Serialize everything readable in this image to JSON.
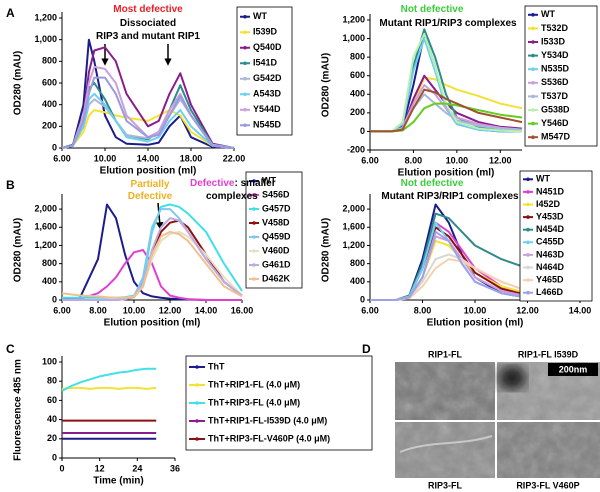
{
  "panels": [
    "A",
    "B",
    "C",
    "D"
  ],
  "micrographs": {
    "labels": [
      "RIP1-FL",
      "RIP1-FL I539D",
      "RIP3-FL",
      "RIP3-FL V460P"
    ],
    "scale_bar": "200nm"
  },
  "chart_data": [
    {
      "type": "line",
      "xlabel": "Elution position (ml)",
      "ylabel": "OD280 (mAU)",
      "annotations": [
        {
          "text": "Most defective",
          "color": "#e8202a"
        },
        {
          "text": "Dissociated",
          "color": "#000000"
        },
        {
          "text": "RIP3 and mutant RIP1",
          "color": "#000000"
        }
      ],
      "xlim": [
        6,
        22
      ],
      "xticks": [
        {
          "value": 6,
          "label": "6.00"
        },
        {
          "value": 10,
          "label": "10.00"
        },
        {
          "value": 14,
          "label": "14.00"
        },
        {
          "value": 18,
          "label": "18.00"
        },
        {
          "value": 22,
          "label": "22.00"
        }
      ],
      "ylim": [
        0,
        1200
      ],
      "yticks": [
        0,
        200,
        400,
        600,
        800,
        {
          "value": 1000,
          "label": "1,000"
        },
        {
          "value": 1200,
          "label": "1,200"
        }
      ],
      "x": [
        6,
        7,
        8,
        8.5,
        9,
        10,
        11,
        12,
        14,
        15,
        16,
        17,
        18,
        20,
        22
      ],
      "series": [
        {
          "name": "WT",
          "color": "#1c1c8c",
          "values": [
            0,
            20,
            400,
            1000,
            800,
            300,
            100,
            40,
            30,
            50,
            200,
            300,
            100,
            10,
            0
          ]
        },
        {
          "name": "I539D",
          "color": "#f2e232",
          "values": [
            0,
            20,
            150,
            300,
            350,
            330,
            300,
            280,
            250,
            300,
            350,
            300,
            150,
            20,
            0
          ]
        },
        {
          "name": "Q540D",
          "color": "#8b1c8b",
          "values": [
            0,
            30,
            300,
            700,
            900,
            930,
            800,
            500,
            200,
            250,
            500,
            690,
            400,
            40,
            0
          ]
        },
        {
          "name": "I541D",
          "color": "#2e8b8b",
          "values": [
            0,
            30,
            300,
            550,
            600,
            450,
            250,
            120,
            80,
            150,
            350,
            580,
            350,
            30,
            0
          ]
        },
        {
          "name": "G542D",
          "color": "#a9b8d8",
          "values": [
            0,
            20,
            200,
            400,
            450,
            380,
            250,
            120,
            90,
            130,
            300,
            450,
            300,
            30,
            0
          ]
        },
        {
          "name": "A543D",
          "color": "#6ecff0",
          "values": [
            0,
            20,
            200,
            450,
            500,
            400,
            250,
            100,
            60,
            100,
            250,
            350,
            200,
            20,
            0
          ]
        },
        {
          "name": "Y544D",
          "color": "#c9a0dc",
          "values": [
            0,
            20,
            300,
            600,
            750,
            730,
            600,
            300,
            100,
            150,
            350,
            500,
            300,
            20,
            0
          ]
        },
        {
          "name": "N545D",
          "color": "#9a9ae0",
          "values": [
            0,
            20,
            250,
            500,
            650,
            650,
            500,
            250,
            100,
            120,
            300,
            480,
            300,
            20,
            0
          ]
        }
      ]
    },
    {
      "type": "line",
      "xlabel": "Elution position (ml)",
      "ylabel": "OD280 (mAU)",
      "annotations": [
        {
          "text": "Not defective",
          "color": "#3ccc3c"
        },
        {
          "text": "Mutant RIP1/RIP3 complexes",
          "color": "#000000"
        }
      ],
      "xlim": [
        6,
        13
      ],
      "xticks": [
        {
          "value": 6,
          "label": "6.00"
        },
        {
          "value": 8,
          "label": "8.00"
        },
        {
          "value": 10,
          "label": "10.00"
        },
        {
          "value": 12,
          "label": "12.00"
        }
      ],
      "ylim": [
        -200,
        1200
      ],
      "yticks": [
        -200,
        0,
        200,
        400,
        600,
        800,
        {
          "value": 1000,
          "label": "1,000"
        },
        {
          "value": 1200,
          "label": "1,200"
        }
      ],
      "x": [
        6,
        7,
        7.5,
        8,
        8.5,
        9,
        9.5,
        10,
        11,
        12,
        13
      ],
      "series": [
        {
          "name": "WT",
          "color": "#1c1c8c",
          "values": [
            0,
            0,
            50,
            500,
            1050,
            700,
            250,
            80,
            20,
            0,
            0
          ]
        },
        {
          "name": "T532D",
          "color": "#f2e232",
          "values": [
            0,
            0,
            20,
            300,
            580,
            560,
            500,
            450,
            380,
            300,
            250
          ]
        },
        {
          "name": "I533D",
          "color": "#8b1c8b",
          "values": [
            0,
            0,
            30,
            350,
            600,
            450,
            300,
            200,
            100,
            50,
            30
          ]
        },
        {
          "name": "Y534D",
          "color": "#2e8b8b",
          "values": [
            0,
            0,
            80,
            700,
            1100,
            800,
            400,
            150,
            50,
            20,
            10
          ]
        },
        {
          "name": "N535D",
          "color": "#6ecff0",
          "values": [
            0,
            0,
            80,
            650,
            1000,
            650,
            250,
            80,
            20,
            0,
            0
          ]
        },
        {
          "name": "S536D",
          "color": "#c9a0dc",
          "values": [
            0,
            0,
            40,
            300,
            500,
            400,
            250,
            150,
            80,
            40,
            20
          ]
        },
        {
          "name": "T537D",
          "color": "#a9b8d8",
          "values": [
            0,
            0,
            30,
            250,
            400,
            300,
            200,
            120,
            60,
            30,
            20
          ]
        },
        {
          "name": "G538D",
          "color": "#b8f0b0",
          "values": [
            0,
            0,
            100,
            800,
            1050,
            700,
            300,
            100,
            30,
            10,
            0
          ]
        },
        {
          "name": "Y546D",
          "color": "#66cc22",
          "values": [
            0,
            0,
            10,
            100,
            250,
            300,
            300,
            280,
            230,
            180,
            150
          ]
        },
        {
          "name": "M547D",
          "color": "#a0522d",
          "values": [
            0,
            0,
            20,
            250,
            450,
            420,
            350,
            300,
            200,
            150,
            100
          ]
        }
      ]
    },
    {
      "type": "line",
      "xlabel": "Elution position (ml)",
      "ylabel": "OD280 (mAU)",
      "annotations": [
        {
          "text": "Partially",
          "color": "#f0b020"
        },
        {
          "text": "Defective",
          "color": "#f0b020"
        },
        {
          "text": "Defective",
          "color": "#e040d0"
        },
        {
          "text": ": smaller",
          "color": "#000000"
        },
        {
          "text": "complexes",
          "color": "#000000"
        }
      ],
      "xlim": [
        6,
        16
      ],
      "xticks": [
        {
          "value": 6,
          "label": "6.00"
        },
        {
          "value": 8,
          "label": "8.00"
        },
        {
          "value": 10,
          "label": "10.00"
        },
        {
          "value": 12,
          "label": "12.00"
        },
        {
          "value": 14,
          "label": "14.00"
        },
        {
          "value": 16,
          "label": "16.00"
        }
      ],
      "ylim": [
        0,
        2200
      ],
      "yticks": [
        0,
        400,
        800,
        {
          "value": 1200,
          "label": "1,200"
        },
        {
          "value": 1600,
          "label": "1,600"
        },
        {
          "value": 2000,
          "label": "2,000"
        }
      ],
      "x": [
        6,
        7,
        8,
        8.5,
        9,
        9.5,
        10,
        10.5,
        11,
        11.5,
        12,
        12.5,
        13,
        14,
        15,
        16
      ],
      "series": [
        {
          "name": "WT",
          "color": "#1c1c8c",
          "values": [
            0,
            50,
            900,
            2100,
            1800,
            1000,
            400,
            150,
            80,
            50,
            30,
            20,
            10,
            0,
            0,
            0
          ]
        },
        {
          "name": "S456D",
          "color": "#e040d0",
          "values": [
            0,
            20,
            150,
            300,
            500,
            800,
            1050,
            1100,
            800,
            300,
            100,
            50,
            20,
            0,
            0,
            0
          ]
        },
        {
          "name": "G457D",
          "color": "#40e0e8",
          "values": [
            50,
            50,
            50,
            50,
            50,
            60,
            100,
            400,
            1500,
            2050,
            2100,
            2050,
            1900,
            1500,
            800,
            200
          ]
        },
        {
          "name": "V458D",
          "color": "#8b1010",
          "values": [
            0,
            0,
            0,
            0,
            0,
            20,
            60,
            300,
            1000,
            1500,
            1700,
            1750,
            1600,
            1000,
            400,
            100
          ]
        },
        {
          "name": "Q459D",
          "color": "#80c8f0",
          "values": [
            0,
            0,
            0,
            0,
            0,
            30,
            80,
            500,
            1600,
            2000,
            2000,
            1800,
            1500,
            900,
            400,
            100
          ]
        },
        {
          "name": "V460D",
          "color": "#e8e0c0",
          "values": [
            0,
            0,
            0,
            0,
            0,
            20,
            60,
            300,
            900,
            1300,
            1450,
            1500,
            1400,
            1000,
            500,
            100
          ]
        },
        {
          "name": "G461D",
          "color": "#c0a8e0",
          "values": [
            0,
            0,
            0,
            0,
            0,
            20,
            70,
            350,
            1100,
            1600,
            1800,
            1750,
            1500,
            900,
            400,
            100
          ]
        },
        {
          "name": "D462K",
          "color": "#f0c090",
          "values": [
            150,
            100,
            80,
            60,
            50,
            50,
            80,
            300,
            1000,
            1400,
            1500,
            1450,
            1300,
            800,
            300,
            80
          ]
        }
      ]
    },
    {
      "type": "line",
      "xlabel": "Elution position (ml)",
      "ylabel": "OD280 (mAU)",
      "annotations": [
        {
          "text": "Not defective",
          "color": "#3ccc3c"
        },
        {
          "text": "Mutant RIP3/RIP1 complexes",
          "color": "#000000"
        }
      ],
      "xlim": [
        6,
        14
      ],
      "xticks": [
        {
          "value": 6,
          "label": "6.00"
        },
        {
          "value": 8,
          "label": "8.00"
        },
        {
          "value": 10,
          "label": "10.00"
        },
        {
          "value": 12,
          "label": "12.00"
        },
        {
          "value": 14,
          "label": "14.00"
        }
      ],
      "ylim": [
        0,
        2200
      ],
      "yticks": [
        0,
        400,
        800,
        {
          "value": 1200,
          "label": "1,200"
        },
        {
          "value": 1600,
          "label": "1,600"
        },
        {
          "value": 2000,
          "label": "2,000"
        }
      ],
      "x": [
        6,
        7,
        7.5,
        8,
        8.5,
        9,
        9.5,
        10,
        11,
        12,
        13,
        14
      ],
      "series": [
        {
          "name": "WT",
          "color": "#1c1c8c",
          "values": [
            0,
            0,
            100,
            900,
            2100,
            1700,
            1000,
            500,
            150,
            50,
            20,
            0
          ]
        },
        {
          "name": "N451D",
          "color": "#e040d0",
          "values": [
            0,
            0,
            80,
            700,
            1700,
            1500,
            1100,
            700,
            300,
            100,
            30,
            0
          ]
        },
        {
          "name": "I452D",
          "color": "#f2e232",
          "values": [
            0,
            0,
            50,
            500,
            1300,
            1200,
            900,
            600,
            300,
            150,
            80,
            50
          ]
        },
        {
          "name": "Y453D",
          "color": "#8b1010",
          "values": [
            0,
            0,
            80,
            700,
            1600,
            1400,
            1000,
            600,
            250,
            100,
            30,
            0
          ]
        },
        {
          "name": "N454D",
          "color": "#2e8b8b",
          "values": [
            0,
            0,
            100,
            800,
            1900,
            1800,
            1500,
            1200,
            900,
            700,
            500,
            400
          ]
        },
        {
          "name": "C455D",
          "color": "#6ecff0",
          "values": [
            0,
            0,
            80,
            700,
            1700,
            1300,
            800,
            400,
            150,
            50,
            20,
            0
          ]
        },
        {
          "name": "N463D",
          "color": "#c9a0dc",
          "values": [
            0,
            0,
            60,
            500,
            1400,
            1300,
            900,
            500,
            200,
            80,
            20,
            0
          ]
        },
        {
          "name": "N464D",
          "color": "#d8d8d0",
          "values": [
            0,
            0,
            50,
            400,
            900,
            1000,
            900,
            700,
            400,
            200,
            80,
            20
          ]
        },
        {
          "name": "Y465D",
          "color": "#f8d0b0",
          "values": [
            0,
            0,
            40,
            300,
            700,
            900,
            850,
            700,
            400,
            200,
            80,
            20
          ]
        },
        {
          "name": "L466D",
          "color": "#a0a0e8",
          "values": [
            0,
            0,
            60,
            500,
            1500,
            1300,
            800,
            400,
            150,
            50,
            20,
            0
          ]
        }
      ]
    },
    {
      "type": "line",
      "xlabel": "Time (min)",
      "ylabel": "Fluorescence 485 nm",
      "annotations": [],
      "xlim": [
        0,
        36
      ],
      "xticks": [
        0,
        12,
        24,
        36
      ],
      "ylim": [
        0,
        100
      ],
      "yticks": [
        0,
        20,
        40,
        60,
        80,
        100
      ],
      "x": [
        0,
        3,
        6,
        9,
        12,
        15,
        18,
        21,
        24,
        27,
        30
      ],
      "series": [
        {
          "name": "ThT",
          "color": "#1c1c8c",
          "values": [
            20,
            20,
            20,
            20,
            20,
            20,
            20,
            20,
            20,
            20,
            20
          ]
        },
        {
          "name": "ThT+RIP1-FL (4.0 μM)",
          "color": "#f2e232",
          "values": [
            72,
            73,
            73,
            72,
            73,
            73,
            72,
            73,
            73,
            72,
            73
          ]
        },
        {
          "name": "ThT+RIP3-FL (4.0 μM)",
          "color": "#40e0e8",
          "values": [
            70,
            75,
            79,
            82,
            85,
            87,
            89,
            90,
            92,
            93,
            93
          ]
        },
        {
          "name": "ThT+RIP1-FL-I539D (4.0 μM)",
          "color": "#8b1c8b",
          "values": [
            26,
            26,
            26,
            26,
            26,
            26,
            26,
            26,
            26,
            26,
            26
          ]
        },
        {
          "name": "ThT+RIP3-FL-V460P (4.0 μM)",
          "color": "#8b1010",
          "values": [
            39,
            39,
            39,
            39,
            39,
            39,
            39,
            39,
            39,
            39,
            39
          ]
        }
      ]
    }
  ]
}
